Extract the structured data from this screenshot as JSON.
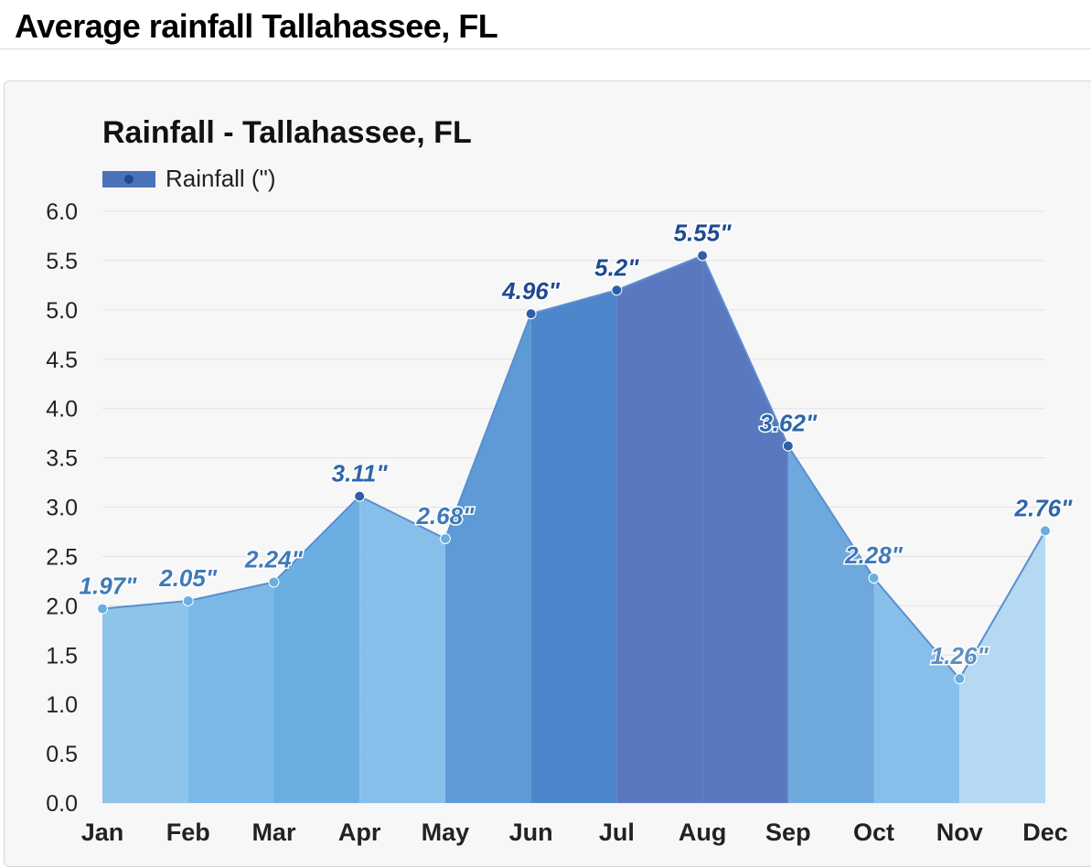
{
  "page": {
    "title": "Average rainfall Tallahassee, FL"
  },
  "chart_data": {
    "type": "area",
    "title": "Rainfall - Tallahassee, FL",
    "xlabel": "",
    "ylabel": "",
    "categories": [
      "Jan",
      "Feb",
      "Mar",
      "Apr",
      "May",
      "Jun",
      "Jul",
      "Aug",
      "Sep",
      "Oct",
      "Nov",
      "Dec"
    ],
    "series": [
      {
        "name": "Rainfall (\")",
        "values": [
          1.97,
          2.05,
          2.24,
          3.11,
          2.68,
          4.96,
          5.2,
          5.55,
          3.62,
          2.28,
          1.26,
          2.76
        ],
        "data_labels": [
          "1.97\"",
          "2.05\"",
          "2.24\"",
          "3.11\"",
          "2.68\"",
          "4.96\"",
          "5.2\"",
          "5.55\"",
          "3.62\"",
          "2.28\"",
          "1.26\"",
          "2.76\""
        ]
      }
    ],
    "ylim": [
      0,
      6
    ],
    "yticks": [
      "0.0",
      "0.5",
      "1.0",
      "1.5",
      "2.0",
      "2.5",
      "3.0",
      "3.5",
      "4.0",
      "4.5",
      "5.0",
      "5.5",
      "6.0"
    ],
    "grid": true,
    "legend_position": "top-left",
    "colors": {
      "legend_swatch": "#4a72b8",
      "line": "#5a8fcf",
      "marker_light": "#6aaee0",
      "marker_dark": "#2f5ea8",
      "grid": "#e3e3e3",
      "band_fills": [
        "#8ec3ea",
        "#7ab8e6",
        "#6aaee2",
        "#88bfea",
        "#5d9ad6",
        "#4e86cc",
        "#5a78c0",
        "#5a78c0",
        "#6ea8dc",
        "#88bfea",
        "#b5d8f3",
        "#7cb8e5"
      ],
      "label_colors": [
        "#3f7ab8",
        "#3f7ab8",
        "#3f7ab8",
        "#2f66aa",
        "#3f7ab8",
        "#1f4a90",
        "#1f4a90",
        "#1f4a90",
        "#2f66aa",
        "#3f7ab8",
        "#5e8fc4",
        "#2f66aa"
      ]
    }
  }
}
